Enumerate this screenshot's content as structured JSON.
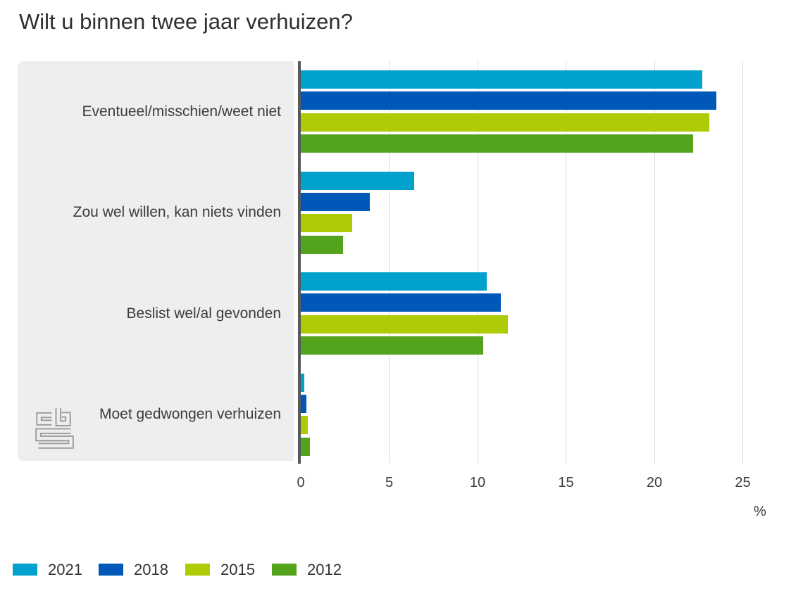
{
  "title": "Wilt u binnen twee jaar verhuizen?",
  "logo": "cbs",
  "chart_data": {
    "type": "bar",
    "orientation": "horizontal",
    "title": "Wilt u binnen twee jaar verhuizen?",
    "categories": [
      "Eventueel/misschien/weet niet",
      "Zou wel willen, kan niets vinden",
      "Beslist wel/al gevonden",
      "Moet gedwongen verhuizen"
    ],
    "series": [
      {
        "name": "2021",
        "color": "#00a1cd",
        "values": [
          22.7,
          6.4,
          10.5,
          0.2
        ]
      },
      {
        "name": "2018",
        "color": "#0058b8",
        "values": [
          23.5,
          3.9,
          11.3,
          0.3
        ]
      },
      {
        "name": "2015",
        "color": "#afcb05",
        "values": [
          23.1,
          2.9,
          11.7,
          0.4
        ]
      },
      {
        "name": "2012",
        "color": "#53a31d",
        "values": [
          22.2,
          2.4,
          10.3,
          0.5
        ]
      }
    ],
    "x_ticks": [
      0,
      5,
      10,
      15,
      20,
      25
    ],
    "xlim": [
      0,
      28.4
    ],
    "xlabel": "%",
    "grid": true,
    "legend_position": "bottom"
  }
}
